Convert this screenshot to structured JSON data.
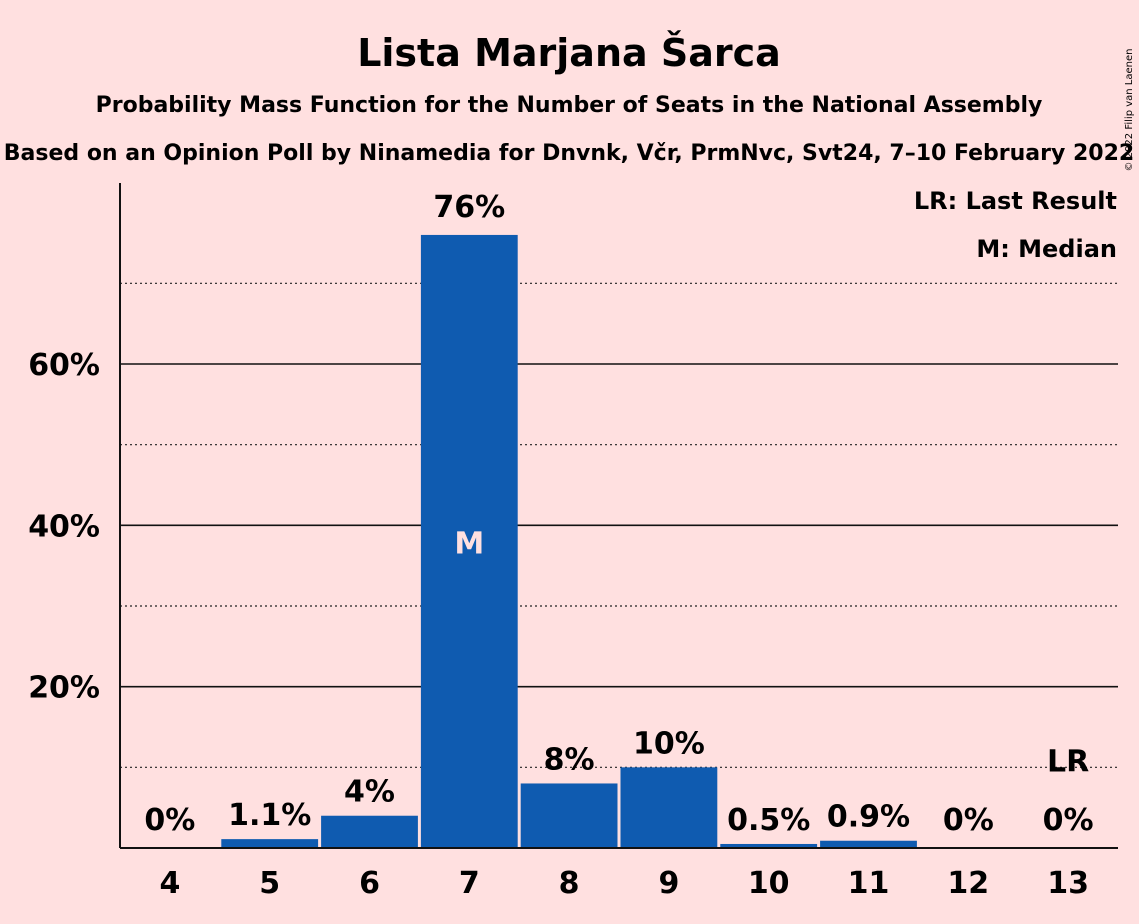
{
  "chart_data": {
    "type": "bar",
    "title": "Lista Marjana Šarca",
    "subtitle": "Probability Mass Function for the Number of Seats in the National Assembly",
    "subtitle2": "Based on an Opinion Poll by Ninamedia for Dnvnk, Včr, PrmNvc, Svt24, 7–10 February 2022",
    "copyright": "© 2022 Filip van Laenen",
    "categories": [
      "4",
      "5",
      "6",
      "7",
      "8",
      "9",
      "10",
      "11",
      "12",
      "13"
    ],
    "values": [
      0,
      1.1,
      4,
      76,
      8,
      10,
      0.5,
      0.9,
      0,
      0
    ],
    "value_labels": [
      "0%",
      "1.1%",
      "4%",
      "76%",
      "8%",
      "10%",
      "0.5%",
      "0.9%",
      "0%",
      "0%"
    ],
    "yticks": [
      20,
      40,
      60
    ],
    "ytick_labels": [
      "20%",
      "40%",
      "60%"
    ],
    "ylim": [
      0,
      82
    ],
    "median_category": "7",
    "median_marker": "M",
    "last_result_category": "13",
    "last_result_marker": "LR",
    "legend": [
      "LR: Last Result",
      "M: Median"
    ],
    "legend_position": "top-right",
    "bar_color": "#0F5BB0",
    "background_color": "#FFE0E0"
  }
}
